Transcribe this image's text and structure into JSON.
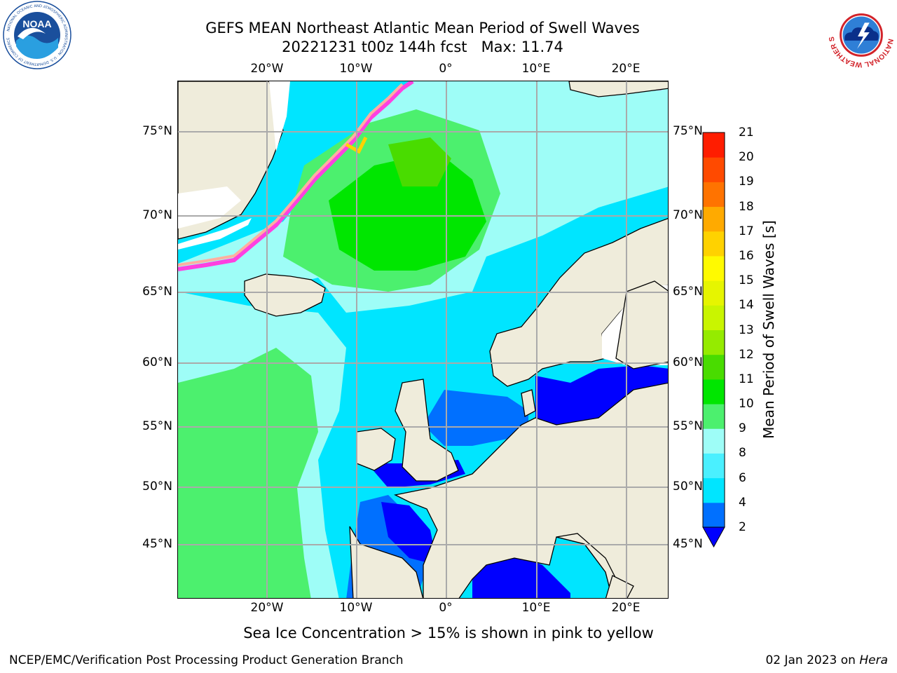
{
  "title": {
    "line1": "GEFS MEAN Northeast Atlantic Mean Period of Swell Waves",
    "line2": "20221231 t00z 144h fcst   Max: 11.74"
  },
  "map": {
    "lon_ticks": [
      "20°W",
      "10°W",
      "0°",
      "10°E",
      "20°E"
    ],
    "lat_ticks": [
      "75°N",
      "70°N",
      "65°N",
      "60°N",
      "55°N",
      "50°N",
      "45°N"
    ]
  },
  "colorbar": {
    "title": "Mean Period of Swell Waves [s]",
    "levels": [
      "2",
      "4",
      "6",
      "8",
      "9",
      "10",
      "11",
      "12",
      "13",
      "14",
      "15",
      "16",
      "17",
      "18",
      "19",
      "20",
      "21"
    ],
    "colors": [
      "#0070ff",
      "#00e5ff",
      "#4af0ff",
      "#9efdf7",
      "#4cf06e",
      "#00e600",
      "#49dc00",
      "#95eb00",
      "#c9f500",
      "#e6f500",
      "#fffa00",
      "#ffd200",
      "#ffaa00",
      "#ff7300",
      "#ff4a00",
      "#ff1d00"
    ],
    "extend_color": "#0000ff"
  },
  "ice_note": "Sea Ice Concentration > 15% is shown in pink to yellow",
  "footer": {
    "left": "NCEP/EMC/Verification Post Processing Product Generation Branch",
    "right_date": "02 Jan 2023 on ",
    "right_host": "Hera"
  },
  "logos": {
    "noaa_text": "NOAA",
    "noaa_ring": "NATIONAL OCEANIC AND ATMOSPHERIC ADMINISTRATION · U.S. DEPARTMENT OF COMMERCE",
    "nws_ring": "NATIONAL WEATHER SERVICE"
  }
}
